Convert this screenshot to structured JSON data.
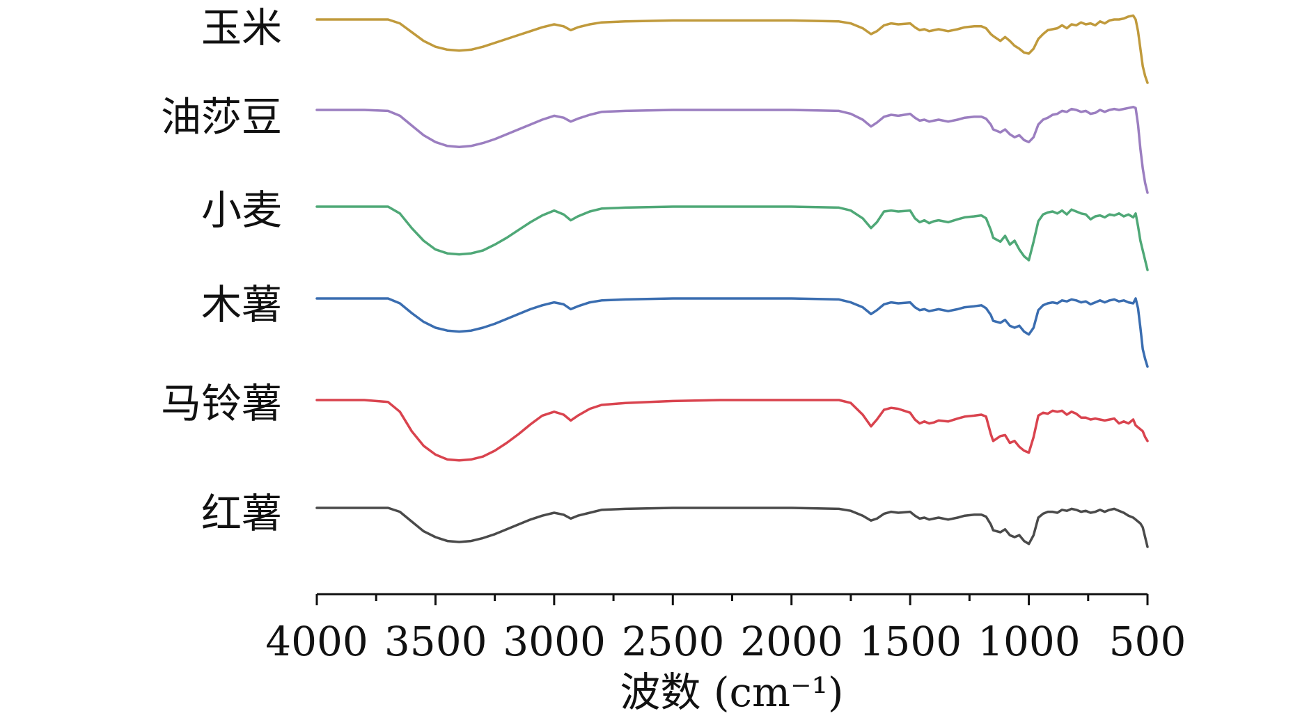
{
  "chart_data": {
    "type": "line",
    "title": "",
    "xlabel": "波数 (cm⁻¹)",
    "ylabel": "",
    "xlim": [
      4000,
      500
    ],
    "x_reversed": true,
    "xticks": [
      4000,
      3500,
      3000,
      2500,
      2000,
      1500,
      1000,
      500
    ],
    "y_units": "relative transmittance (stacked, offset)",
    "series": [
      {
        "name": "玉米",
        "color": "#C09A3C",
        "offset": 0,
        "x": [
          4000,
          3800,
          3700,
          3650,
          3600,
          3550,
          3500,
          3450,
          3400,
          3350,
          3300,
          3250,
          3200,
          3150,
          3100,
          3050,
          3000,
          2960,
          2930,
          2900,
          2850,
          2800,
          2700,
          2500,
          2300,
          2000,
          1800,
          1750,
          1700,
          1665,
          1640,
          1610,
          1580,
          1550,
          1500,
          1480,
          1460,
          1440,
          1420,
          1400,
          1380,
          1340,
          1300,
          1270,
          1230,
          1200,
          1180,
          1160,
          1150,
          1120,
          1100,
          1080,
          1060,
          1040,
          1020,
          1000,
          980,
          960,
          940,
          920,
          900,
          880,
          860,
          840,
          820,
          800,
          780,
          760,
          740,
          720,
          700,
          680,
          660,
          640,
          620,
          600,
          580,
          560,
          550,
          540,
          530,
          520,
          510,
          500
        ],
        "y": [
          100,
          100,
          100,
          96,
          87,
          78,
          72,
          69,
          68,
          69,
          72,
          76,
          80,
          84,
          88,
          92,
          95,
          93,
          89,
          92,
          95,
          97,
          98,
          99,
          99,
          99,
          98,
          96,
          91,
          85,
          88,
          94,
          96,
          95,
          96,
          92,
          89,
          90,
          88,
          89,
          90,
          88,
          90,
          92,
          93,
          93,
          91,
          85,
          83,
          78,
          82,
          78,
          73,
          70,
          66,
          65,
          70,
          80,
          85,
          89,
          90,
          91,
          94,
          91,
          95,
          94,
          97,
          95,
          96,
          94,
          98,
          96,
          99,
          100,
          100,
          101,
          103,
          104,
          100,
          88,
          70,
          52,
          42,
          35
        ]
      },
      {
        "name": "油莎豆",
        "color": "#9B7EC0",
        "offset": 1,
        "x": [
          4000,
          3800,
          3700,
          3650,
          3600,
          3550,
          3500,
          3450,
          3400,
          3350,
          3300,
          3250,
          3200,
          3150,
          3100,
          3050,
          3000,
          2960,
          2930,
          2900,
          2850,
          2800,
          2700,
          2500,
          2300,
          2000,
          1800,
          1750,
          1700,
          1665,
          1640,
          1610,
          1580,
          1550,
          1500,
          1480,
          1460,
          1440,
          1420,
          1400,
          1380,
          1340,
          1300,
          1270,
          1230,
          1200,
          1180,
          1160,
          1150,
          1120,
          1100,
          1080,
          1060,
          1040,
          1020,
          1000,
          980,
          960,
          940,
          920,
          900,
          880,
          860,
          840,
          820,
          800,
          780,
          760,
          740,
          720,
          700,
          680,
          660,
          640,
          620,
          600,
          580,
          560,
          550,
          540,
          530,
          520,
          510,
          500
        ],
        "y": [
          100,
          100,
          99,
          94,
          84,
          74,
          67,
          63,
          62,
          63,
          66,
          70,
          75,
          80,
          85,
          90,
          94,
          92,
          88,
          91,
          95,
          98,
          99,
          100,
          100,
          100,
          99,
          96,
          90,
          83,
          87,
          93,
          95,
          94,
          96,
          92,
          89,
          90,
          88,
          89,
          90,
          88,
          90,
          92,
          93,
          93,
          91,
          85,
          80,
          77,
          80,
          75,
          72,
          74,
          69,
          67,
          72,
          85,
          90,
          92,
          95,
          96,
          99,
          98,
          101,
          100,
          98,
          99,
          96,
          97,
          100,
          98,
          100,
          101,
          100,
          101,
          102,
          103,
          102,
          85,
          60,
          40,
          25,
          15
        ]
      },
      {
        "name": "小麦",
        "color": "#4FA877",
        "offset": 2,
        "x": [
          4000,
          3800,
          3700,
          3650,
          3600,
          3550,
          3500,
          3450,
          3400,
          3350,
          3300,
          3250,
          3200,
          3150,
          3100,
          3050,
          3000,
          2960,
          2930,
          2900,
          2850,
          2800,
          2700,
          2500,
          2300,
          2000,
          1800,
          1750,
          1700,
          1665,
          1640,
          1610,
          1580,
          1550,
          1500,
          1480,
          1460,
          1440,
          1420,
          1400,
          1380,
          1340,
          1300,
          1270,
          1230,
          1200,
          1180,
          1160,
          1150,
          1120,
          1100,
          1080,
          1060,
          1040,
          1020,
          1000,
          980,
          960,
          940,
          920,
          900,
          880,
          860,
          840,
          820,
          800,
          780,
          760,
          740,
          720,
          700,
          680,
          660,
          640,
          620,
          600,
          580,
          560,
          550,
          540,
          530,
          520,
          510,
          500
        ],
        "y": [
          100,
          100,
          100,
          93,
          78,
          65,
          56,
          52,
          51,
          52,
          55,
          61,
          68,
          76,
          84,
          91,
          96,
          92,
          86,
          90,
          95,
          98,
          99,
          100,
          100,
          100,
          99,
          96,
          88,
          78,
          84,
          95,
          96,
          95,
          96,
          88,
          84,
          86,
          83,
          85,
          86,
          84,
          87,
          89,
          90,
          91,
          88,
          76,
          68,
          64,
          70,
          61,
          65,
          56,
          49,
          45,
          64,
          85,
          92,
          94,
          95,
          93,
          96,
          92,
          97,
          95,
          93,
          92,
          87,
          90,
          91,
          89,
          92,
          91,
          93,
          90,
          92,
          89,
          93,
          80,
          65,
          55,
          45,
          35
        ]
      },
      {
        "name": "木薯",
        "color": "#3A6DB0",
        "offset": 3,
        "x": [
          4000,
          3800,
          3700,
          3650,
          3600,
          3550,
          3500,
          3450,
          3400,
          3350,
          3300,
          3250,
          3200,
          3150,
          3100,
          3050,
          3000,
          2960,
          2930,
          2900,
          2850,
          2800,
          2700,
          2500,
          2300,
          2000,
          1800,
          1750,
          1700,
          1665,
          1640,
          1610,
          1580,
          1550,
          1500,
          1480,
          1460,
          1440,
          1420,
          1400,
          1380,
          1340,
          1300,
          1270,
          1230,
          1200,
          1180,
          1160,
          1150,
          1120,
          1100,
          1080,
          1060,
          1040,
          1020,
          1000,
          980,
          960,
          940,
          920,
          900,
          880,
          860,
          840,
          820,
          800,
          780,
          760,
          740,
          720,
          700,
          680,
          660,
          640,
          620,
          600,
          580,
          560,
          550,
          540,
          530,
          520,
          510,
          500
        ],
        "y": [
          100,
          100,
          100,
          95,
          85,
          76,
          70,
          67,
          66,
          67,
          70,
          74,
          79,
          84,
          89,
          93,
          96,
          94,
          89,
          92,
          96,
          98,
          99,
          100,
          100,
          100,
          99,
          96,
          91,
          84,
          88,
          94,
          96,
          95,
          96,
          91,
          88,
          89,
          87,
          88,
          89,
          87,
          89,
          91,
          92,
          93,
          90,
          83,
          77,
          75,
          78,
          72,
          70,
          72,
          66,
          63,
          70,
          88,
          93,
          95,
          96,
          95,
          98,
          97,
          99,
          98,
          96,
          97,
          94,
          96,
          98,
          96,
          98,
          99,
          97,
          98,
          96,
          95,
          100,
          90,
          70,
          48,
          38,
          30
        ]
      },
      {
        "name": "马铃薯",
        "color": "#D9434E",
        "offset": 4,
        "x": [
          4000,
          3800,
          3700,
          3650,
          3600,
          3550,
          3500,
          3450,
          3400,
          3350,
          3300,
          3250,
          3200,
          3150,
          3100,
          3050,
          3000,
          2960,
          2930,
          2900,
          2850,
          2800,
          2700,
          2500,
          2300,
          2000,
          1800,
          1750,
          1700,
          1665,
          1640,
          1610,
          1580,
          1550,
          1500,
          1480,
          1460,
          1440,
          1420,
          1400,
          1380,
          1340,
          1300,
          1270,
          1230,
          1200,
          1180,
          1160,
          1150,
          1120,
          1100,
          1080,
          1060,
          1040,
          1020,
          1000,
          980,
          960,
          940,
          920,
          900,
          880,
          860,
          840,
          820,
          800,
          780,
          760,
          740,
          720,
          700,
          680,
          660,
          640,
          620,
          600,
          580,
          560,
          550,
          540,
          530,
          520,
          510,
          500
        ],
        "y": [
          100,
          100,
          98,
          88,
          68,
          53,
          44,
          39,
          38,
          39,
          42,
          48,
          56,
          65,
          75,
          84,
          88,
          85,
          79,
          84,
          91,
          95,
          97,
          99,
          100,
          100,
          100,
          97,
          85,
          73,
          80,
          90,
          92,
          91,
          87,
          80,
          76,
          78,
          76,
          77,
          79,
          78,
          81,
          83,
          84,
          85,
          83,
          65,
          58,
          63,
          64,
          56,
          58,
          52,
          48,
          46,
          62,
          84,
          87,
          86,
          89,
          88,
          89,
          85,
          88,
          86,
          82,
          82,
          80,
          81,
          80,
          79,
          80,
          81,
          76,
          78,
          76,
          80,
          74,
          72,
          70,
          68,
          62,
          58
        ]
      },
      {
        "name": "红薯",
        "color": "#4A4A4A",
        "offset": 5,
        "x": [
          4000,
          3800,
          3700,
          3650,
          3600,
          3550,
          3500,
          3450,
          3400,
          3350,
          3300,
          3250,
          3200,
          3150,
          3100,
          3050,
          3000,
          2960,
          2930,
          2900,
          2850,
          2800,
          2700,
          2500,
          2300,
          2000,
          1800,
          1750,
          1700,
          1665,
          1640,
          1610,
          1580,
          1550,
          1500,
          1480,
          1460,
          1440,
          1420,
          1400,
          1380,
          1340,
          1300,
          1270,
          1230,
          1200,
          1180,
          1160,
          1150,
          1120,
          1100,
          1080,
          1060,
          1040,
          1020,
          1000,
          980,
          960,
          940,
          920,
          900,
          880,
          860,
          840,
          820,
          800,
          780,
          760,
          740,
          720,
          700,
          680,
          660,
          640,
          620,
          600,
          580,
          560,
          550,
          540,
          530,
          520,
          510,
          500
        ],
        "y": [
          100,
          100,
          100,
          96,
          86,
          76,
          70,
          66,
          65,
          66,
          69,
          73,
          78,
          83,
          88,
          92,
          95,
          93,
          89,
          92,
          95,
          98,
          99,
          100,
          100,
          100,
          99,
          97,
          92,
          87,
          89,
          94,
          96,
          95,
          96,
          92,
          89,
          90,
          88,
          89,
          90,
          88,
          90,
          92,
          93,
          93,
          91,
          83,
          77,
          75,
          78,
          72,
          70,
          72,
          66,
          63,
          72,
          90,
          94,
          96,
          96,
          95,
          98,
          97,
          99,
          98,
          96,
          97,
          95,
          96,
          98,
          96,
          98,
          99,
          97,
          95,
          92,
          90,
          88,
          86,
          84,
          80,
          70,
          60
        ]
      }
    ]
  },
  "labels": {
    "series": [
      "玉米",
      "油莎豆",
      "小麦",
      "木薯",
      "马铃薯",
      "红薯"
    ],
    "xticks": [
      "4000",
      "3500",
      "3000",
      "2500",
      "2000",
      "1500",
      "1000",
      "500"
    ],
    "xlabel": "波数 (cm⁻¹)"
  }
}
